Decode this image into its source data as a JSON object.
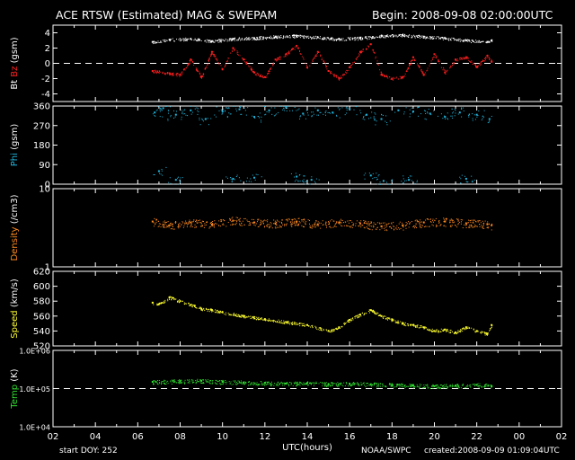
{
  "header": {
    "title": "ACE RTSW (Estimated) MAG & SWEPAM",
    "begin": "Begin: 2008-09-08 02:00:00UTC"
  },
  "footer": {
    "start_doy": "start DOY: 252",
    "source": "NOAA/SWPC",
    "created": "created:2008-09-09 01:09:04UTC"
  },
  "colors": {
    "bt": "#ffffff",
    "bz": "#ff2020",
    "phi": "#20b8e0",
    "density": "#ff8a20",
    "speed": "#ffff30",
    "temp": "#30e030",
    "axis": "#ffffff"
  },
  "chart_data": [
    {
      "type": "scatter",
      "title": "ACE RTSW (Estimated) MAG & SWEPAM",
      "xlabel": "UTC(hours)",
      "x_range": [
        2,
        26
      ],
      "x_ticks": [
        "02",
        "04",
        "06",
        "08",
        "10",
        "12",
        "14",
        "16",
        "18",
        "20",
        "22",
        "00",
        "02"
      ],
      "ylabel_parts": [
        {
          "text": "Bt",
          "color": "#ffffff"
        },
        {
          "text": " Bz",
          "color": "#ff2020"
        },
        {
          "text": " (gsm)",
          "color": "#ffffff"
        }
      ],
      "ylim": [
        -5,
        5
      ],
      "y_ticks": [
        4,
        2,
        0,
        -2,
        -4
      ],
      "y_tick_labels": [
        "4",
        "2",
        "0",
        "-2",
        "-4"
      ],
      "ref_line": 0,
      "series": [
        {
          "name": "Bt",
          "x": [
            6.7,
            7.5,
            8.5,
            9.5,
            10.5,
            11.5,
            12.5,
            13.5,
            14.5,
            15.5,
            16.5,
            17.5,
            18.5,
            19.5,
            20.5,
            21.5,
            22.5,
            22.7
          ],
          "y": [
            2.8,
            3.1,
            3.2,
            2.9,
            3.2,
            3.3,
            3.5,
            3.6,
            3.4,
            3.2,
            3.3,
            3.6,
            3.7,
            3.5,
            3.3,
            3.0,
            2.8,
            3.0
          ]
        },
        {
          "name": "Bz",
          "x": [
            6.7,
            7.5,
            8.0,
            8.5,
            9.0,
            9.5,
            10.0,
            10.5,
            11.0,
            11.5,
            12.0,
            12.5,
            13.0,
            13.5,
            14.0,
            14.5,
            15.0,
            15.5,
            16.0,
            16.5,
            17.0,
            17.5,
            18.0,
            18.5,
            19.0,
            19.5,
            20.0,
            20.5,
            21.0,
            21.5,
            22.0,
            22.5,
            22.7
          ],
          "y": [
            -1.0,
            -1.3,
            -1.5,
            0.5,
            -1.8,
            1.5,
            -0.8,
            2.0,
            0.5,
            -1.2,
            -1.8,
            0.5,
            1.2,
            2.3,
            -0.5,
            1.5,
            -1.0,
            -2.0,
            -0.5,
            1.5,
            2.5,
            -1.5,
            -2.0,
            -1.8,
            0.8,
            -1.5,
            1.2,
            -1.2,
            0.5,
            0.8,
            -0.5,
            1.0,
            0.2
          ]
        }
      ]
    },
    {
      "type": "scatter",
      "x_range": [
        2,
        26
      ],
      "ylabel_parts": [
        {
          "text": "Phi",
          "color": "#20b8e0"
        },
        {
          "text": " (gsm)",
          "color": "#ffffff"
        }
      ],
      "ylim": [
        0,
        360
      ],
      "y_ticks": [
        360,
        270,
        180,
        90,
        0
      ],
      "y_tick_labels": [
        "360",
        "270",
        "180",
        "90",
        "0"
      ],
      "series": [
        {
          "name": "Phi",
          "x": [
            6.8,
            7.2,
            7.8,
            8.5,
            9.2,
            10.0,
            10.8,
            11.5,
            12.2,
            13.0,
            13.8,
            14.5,
            15.2,
            16.0,
            16.8,
            17.5,
            18.3,
            19.0,
            19.8,
            20.5,
            21.2,
            22.0,
            22.6,
            7.0,
            7.8,
            10.5,
            11.5,
            13.5,
            14.2,
            17.0,
            17.6,
            18.8,
            21.5
          ],
          "y": [
            330,
            350,
            320,
            340,
            300,
            335,
            345,
            310,
            340,
            355,
            325,
            340,
            330,
            345,
            320,
            300,
            340,
            335,
            325,
            310,
            330,
            320,
            300,
            60,
            20,
            25,
            30,
            35,
            20,
            40,
            15,
            20,
            25
          ]
        }
      ]
    },
    {
      "type": "scatter",
      "x_range": [
        2,
        26
      ],
      "ylabel_parts": [
        {
          "text": "Density",
          "color": "#ff8a20"
        },
        {
          "text": " (/cm3)",
          "color": "#ffffff"
        }
      ],
      "ylim": [
        1,
        10
      ],
      "log_scale": true,
      "y_ticks": [
        10,
        1
      ],
      "y_tick_labels": [
        "10",
        "1"
      ],
      "series": [
        {
          "name": "Density",
          "x": [
            6.7,
            7.5,
            8.5,
            9.5,
            10.5,
            11.5,
            12.5,
            13.5,
            14.5,
            15.5,
            16.5,
            17.5,
            18.5,
            19.5,
            20.5,
            21.5,
            22.5,
            22.7
          ],
          "y": [
            3.8,
            3.4,
            3.7,
            3.5,
            3.9,
            3.7,
            3.6,
            3.8,
            3.5,
            3.7,
            3.6,
            3.3,
            3.4,
            3.7,
            3.8,
            3.6,
            3.5,
            3.4
          ]
        }
      ]
    },
    {
      "type": "scatter",
      "x_range": [
        2,
        26
      ],
      "ylabel_parts": [
        {
          "text": "Speed",
          "color": "#ffff30"
        },
        {
          "text": " (km/s)",
          "color": "#ffffff"
        }
      ],
      "ylim": [
        520,
        620
      ],
      "y_ticks": [
        620,
        600,
        580,
        560,
        540,
        520
      ],
      "y_tick_labels": [
        "620",
        "600",
        "580",
        "560",
        "540",
        "520"
      ],
      "series": [
        {
          "name": "Speed",
          "x": [
            6.7,
            7.0,
            7.5,
            8.0,
            8.5,
            9.0,
            9.5,
            10.0,
            11.0,
            12.0,
            13.0,
            14.0,
            15.0,
            15.5,
            16.0,
            16.5,
            17.0,
            17.5,
            18.0,
            18.5,
            19.0,
            19.5,
            20.0,
            20.5,
            21.0,
            21.5,
            22.0,
            22.5,
            22.7
          ],
          "y": [
            578,
            576,
            585,
            580,
            575,
            570,
            568,
            565,
            560,
            556,
            552,
            548,
            540,
            545,
            555,
            562,
            568,
            560,
            555,
            550,
            548,
            545,
            540,
            542,
            538,
            545,
            540,
            536,
            548
          ]
        }
      ]
    },
    {
      "type": "scatter",
      "x_range": [
        2,
        26
      ],
      "ylabel_parts": [
        {
          "text": "Temp",
          "color": "#30e030"
        },
        {
          "text": " (K)",
          "color": "#ffffff"
        }
      ],
      "ylim": [
        10000,
        1000000
      ],
      "log_scale": true,
      "y_ticks": [
        1000000,
        100000,
        10000
      ],
      "y_tick_labels": [
        "1.0E+06",
        "1.0E+05",
        "1.0E+04"
      ],
      "ref_line": 100000,
      "series": [
        {
          "name": "Temp",
          "x": [
            6.7,
            8.0,
            9.0,
            10.0,
            11.0,
            12.0,
            13.0,
            14.0,
            15.0,
            16.0,
            17.0,
            18.0,
            19.0,
            20.0,
            21.0,
            22.0,
            22.7
          ],
          "y": [
            150000,
            155000,
            160000,
            150000,
            145000,
            140000,
            135000,
            140000,
            130000,
            135000,
            130000,
            125000,
            120000,
            115000,
            120000,
            125000,
            115000
          ]
        }
      ]
    }
  ]
}
